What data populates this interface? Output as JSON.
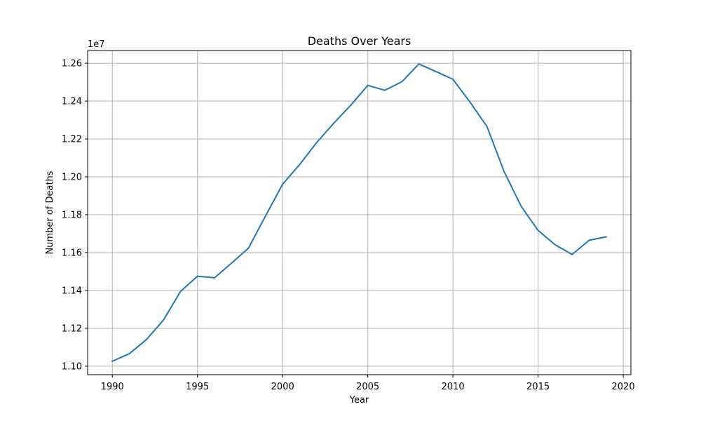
{
  "chart_data": {
    "type": "line",
    "title": "Deaths Over Years",
    "xlabel": "Year",
    "ylabel": "Number of Deaths",
    "offset_label": "1e7",
    "xlim": [
      1988.55,
      2020.45
    ],
    "ylim": [
      1.0955,
      1.2667
    ],
    "x_ticks": [
      1990,
      1995,
      2000,
      2005,
      2010,
      2015,
      2020
    ],
    "x_tick_labels": [
      "1990",
      "1995",
      "2000",
      "2005",
      "2010",
      "2015",
      "2020"
    ],
    "y_ticks": [
      1.1,
      1.12,
      1.14,
      1.16,
      1.18,
      1.2,
      1.22,
      1.24,
      1.26
    ],
    "y_tick_labels": [
      "1.10",
      "1.12",
      "1.14",
      "1.16",
      "1.18",
      "1.20",
      "1.22",
      "1.24",
      "1.26"
    ],
    "grid": true,
    "line_color": "#1f77b4",
    "x": [
      1990,
      1991,
      1992,
      1993,
      1994,
      1995,
      1996,
      1997,
      1998,
      1999,
      2000,
      2001,
      2002,
      2003,
      2004,
      2005,
      2006,
      2007,
      2008,
      2009,
      2010,
      2011,
      2012,
      2013,
      2014,
      2015,
      2016,
      2017,
      2018,
      2019
    ],
    "series": [
      {
        "values": [
          1.1026,
          1.1066,
          1.114,
          1.1243,
          1.1394,
          1.1475,
          1.1467,
          1.1544,
          1.1624,
          1.1794,
          1.1961,
          1.2065,
          1.2181,
          1.2283,
          1.2378,
          1.2483,
          1.2457,
          1.2502,
          1.2596,
          1.2556,
          1.2515,
          1.2395,
          1.2265,
          1.2029,
          1.1845,
          1.1717,
          1.1641,
          1.159,
          1.1665,
          1.1683
        ]
      }
    ]
  }
}
